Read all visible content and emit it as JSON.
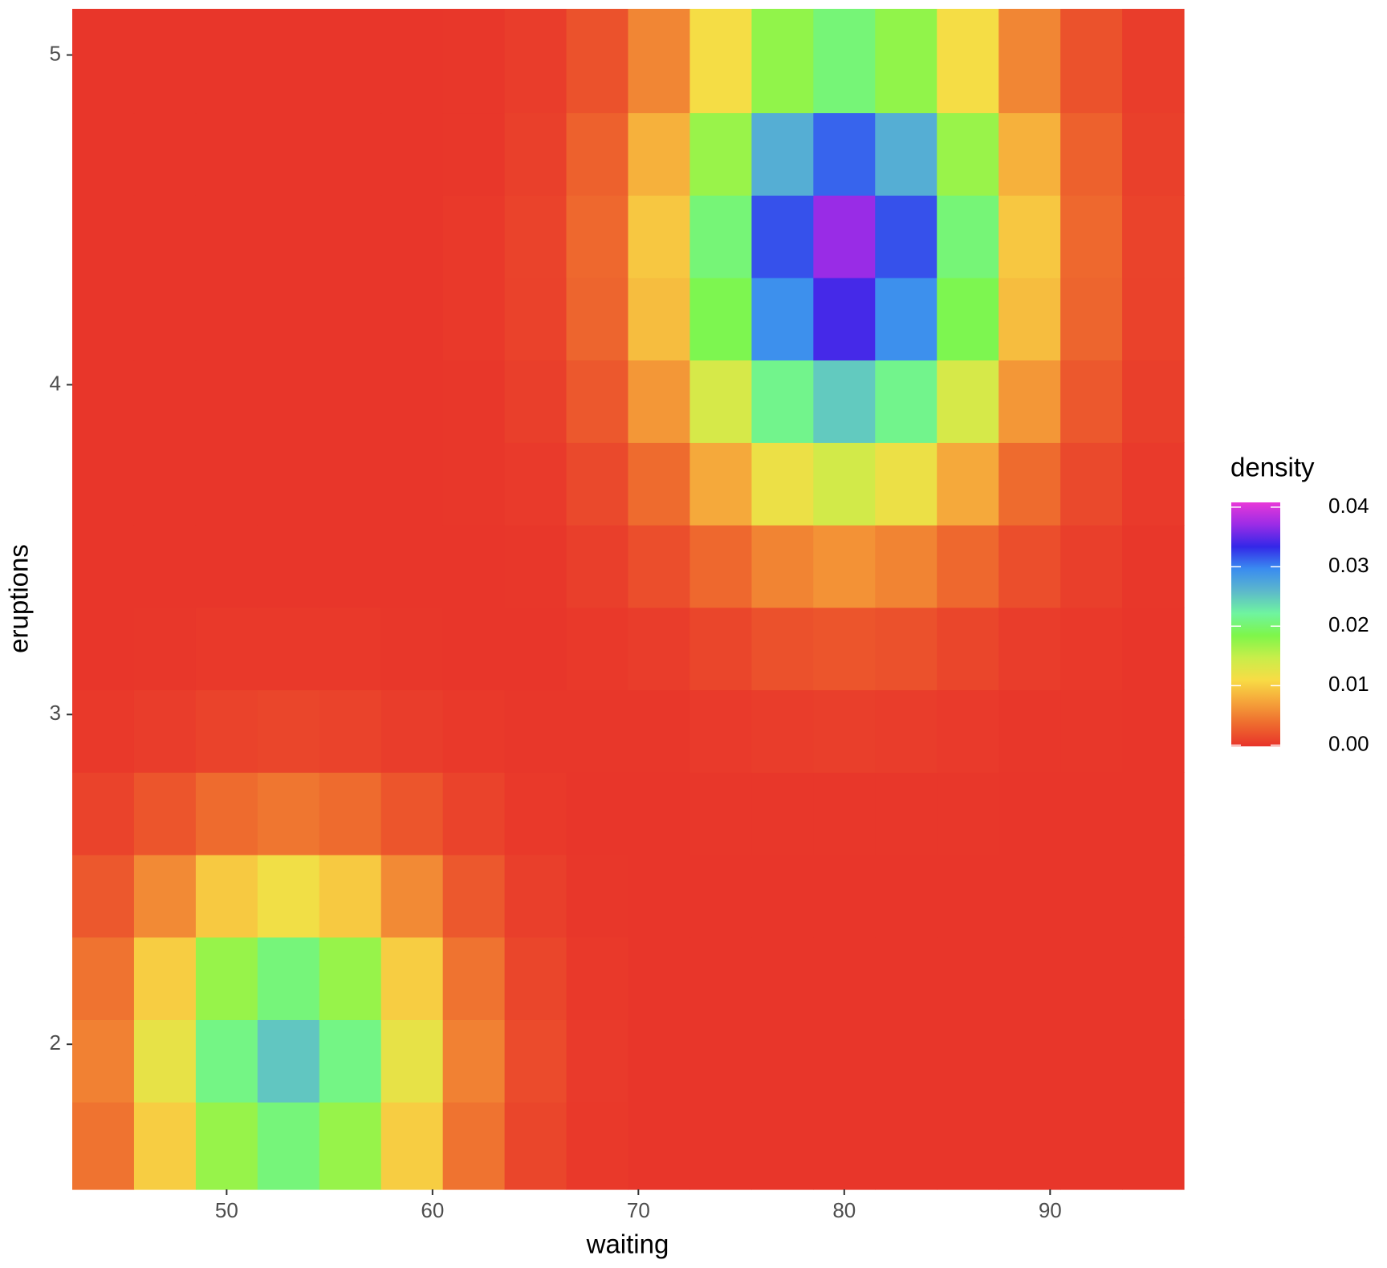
{
  "chart_data": {
    "type": "heatmap",
    "x_label": "waiting",
    "y_label": "eruptions",
    "legend_title": "density",
    "x": [
      44,
      47,
      50,
      53,
      56,
      59,
      62,
      65,
      68,
      71,
      74,
      77,
      80,
      83,
      86,
      89,
      92,
      95
    ],
    "y": [
      1.7,
      1.95,
      2.2,
      2.45,
      2.7,
      2.95,
      3.2,
      3.45,
      3.7,
      3.95,
      4.2,
      4.45,
      4.7,
      4.95
    ],
    "z": [
      [
        0.0041,
        0.01,
        0.0172,
        0.0205,
        0.0172,
        0.01,
        0.0041,
        0.0011,
        0.0002,
        0,
        0,
        0,
        0,
        0,
        0,
        0,
        0,
        0
      ],
      [
        0.005,
        0.0123,
        0.021,
        0.025,
        0.021,
        0.0123,
        0.005,
        0.0014,
        0.0003,
        0,
        0,
        0,
        0,
        0,
        0,
        0,
        0,
        0
      ],
      [
        0.0041,
        0.01,
        0.0172,
        0.0205,
        0.0172,
        0.01,
        0.0041,
        0.0011,
        0.0002,
        0,
        0,
        0,
        0,
        0,
        0,
        0,
        0,
        0
      ],
      [
        0.0023,
        0.0056,
        0.0097,
        0.0115,
        0.0097,
        0.0056,
        0.0023,
        0.0006,
        0.0001,
        0,
        0,
        0,
        0,
        0,
        0,
        0,
        0,
        0
      ],
      [
        0.0009,
        0.0021,
        0.0036,
        0.0043,
        0.0036,
        0.0021,
        0.0009,
        0.0002,
        0,
        0,
        0.0001,
        0.0001,
        0.0001,
        0.0001,
        0.0001,
        0,
        0,
        0
      ],
      [
        0.0002,
        0.0005,
        0.0009,
        0.0011,
        0.0009,
        0.0005,
        0.0002,
        0.0001,
        0.0001,
        0.0001,
        0.0003,
        0.0005,
        0.0006,
        0.0005,
        0.0003,
        0.0001,
        0.0001,
        0
      ],
      [
        0,
        0.0001,
        0.0002,
        0.0002,
        0.0002,
        0.0001,
        0,
        0,
        0.0002,
        0.0005,
        0.0011,
        0.0018,
        0.0021,
        0.0018,
        0.0011,
        0.0005,
        0.0002,
        0
      ],
      [
        0,
        0,
        0,
        0,
        0,
        0,
        0,
        0.0001,
        0.0006,
        0.0016,
        0.0034,
        0.0052,
        0.0061,
        0.0052,
        0.0034,
        0.0016,
        0.0006,
        0.0001
      ],
      [
        0,
        0,
        0,
        0,
        0,
        0,
        0.0001,
        0.0003,
        0.0013,
        0.0036,
        0.0076,
        0.0119,
        0.0139,
        0.0119,
        0.0076,
        0.0036,
        0.0013,
        0.0003
      ],
      [
        0,
        0,
        0,
        0,
        0,
        0,
        0.0001,
        0.0006,
        0.0023,
        0.0064,
        0.0136,
        0.0213,
        0.0248,
        0.0213,
        0.0136,
        0.0064,
        0.0023,
        0.0006
      ],
      [
        0,
        0,
        0,
        0,
        0,
        0,
        0.0002,
        0.0008,
        0.0032,
        0.0089,
        0.0187,
        0.0293,
        0.034,
        0.0293,
        0.0187,
        0.0089,
        0.0032,
        0.0008
      ],
      [
        0,
        0,
        0,
        0,
        0,
        0,
        0.0002,
        0.0009,
        0.0034,
        0.0096,
        0.0204,
        0.0318,
        0.037,
        0.0318,
        0.0204,
        0.0096,
        0.0034,
        0.0009
      ],
      [
        0,
        0,
        0,
        0,
        0,
        0,
        0.0001,
        0.0007,
        0.0029,
        0.0081,
        0.0171,
        0.0267,
        0.0311,
        0.0267,
        0.0171,
        0.0081,
        0.0029,
        0.0007
      ],
      [
        0,
        0,
        0,
        0,
        0,
        0,
        0.0001,
        0.0005,
        0.0019,
        0.0053,
        0.0112,
        0.0175,
        0.0204,
        0.0175,
        0.0112,
        0.0053,
        0.0019,
        0.0005
      ]
    ],
    "xlim": [
      42.5,
      96.5
    ],
    "ylim": [
      1.56,
      5.14
    ],
    "xticks": [
      50,
      60,
      70,
      80,
      90
    ],
    "yticks": [
      2,
      3,
      4,
      5
    ],
    "zlim": [
      -0.0002,
      0.0408
    ],
    "zticks": [
      {
        "value": 0,
        "label": "0.00"
      },
      0.01,
      0.02,
      0.03,
      0.04
    ],
    "colors": [
      "#e8332a",
      "#ee6a2e",
      "#f5a43a",
      "#f8dc45",
      "#c8ee4a",
      "#7ef64a",
      "#6ff4a0",
      "#5cb8cc",
      "#3a8cf0",
      "#3328e8",
      "#9b2ce6",
      "#e838d8"
    ]
  }
}
